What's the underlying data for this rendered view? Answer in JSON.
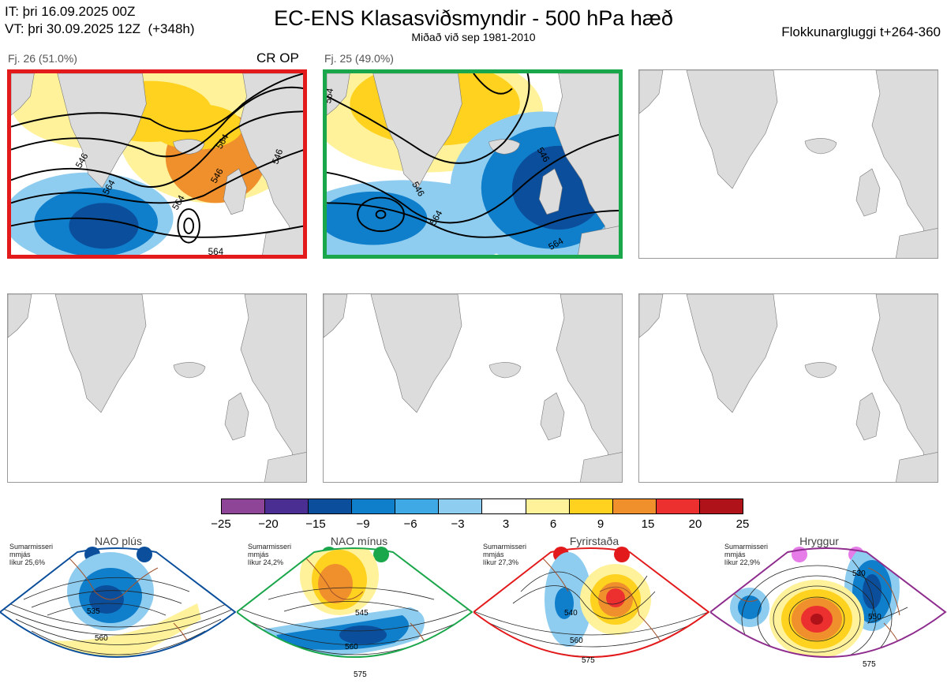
{
  "header": {
    "init_time": "IT: þri 16.09.2025 00Z",
    "valid_time": "VT: þri 30.09.2025 12Z  (+348h)",
    "title": "EC-ENS Klasasviðsmyndir - 500 hPa hæð",
    "subtitle": "Miðað við sep 1981-2010",
    "window": "Flokkunargluggi t+264-360"
  },
  "panels": [
    {
      "label": "Fj. 26 (51.0%)",
      "tag": "CR OP",
      "border_color": "#e31a1c",
      "contour_labels": [
        "546",
        "546",
        "564",
        "564",
        "564",
        "564",
        "546"
      ]
    },
    {
      "label": "Fj. 25 (49.0%)",
      "tag": "",
      "border_color": "#1aa64a",
      "contour_labels": [
        "546",
        "564",
        "546",
        "564",
        "564"
      ]
    },
    {
      "label": "",
      "tag": "",
      "border_color": ""
    },
    {
      "label": "",
      "tag": "",
      "border_color": ""
    },
    {
      "label": "",
      "tag": "",
      "border_color": ""
    },
    {
      "label": "",
      "tag": "",
      "border_color": ""
    }
  ],
  "colorbar": {
    "colors": [
      "#8e4598",
      "#4b2e91",
      "#0b4f9c",
      "#0f7fcc",
      "#3fa9e6",
      "#8fcdf0",
      "#ffffff",
      "#fff29a",
      "#ffd21f",
      "#f0902c",
      "#ec3030",
      "#b0121a"
    ],
    "ticks": [
      "−25",
      "−20",
      "−15",
      "−9",
      "−6",
      "−3",
      "3",
      "6",
      "9",
      "15",
      "20",
      "25"
    ]
  },
  "regimes": [
    {
      "name": "NAO plús",
      "season": "Sumarmisseri",
      "period": "mmjás",
      "prob": "líkur 25,6%",
      "color": "#0b4f9c",
      "contour_labels": [
        "535",
        "560"
      ]
    },
    {
      "name": "NAO mínus",
      "season": "Sumarmisseri",
      "period": "mmjás",
      "prob": "líkur 24,2%",
      "color": "#1aa64a",
      "contour_labels": [
        "545",
        "560",
        "575"
      ]
    },
    {
      "name": "Fyrirstaða",
      "season": "Sumarmisseri",
      "period": "mmjás",
      "prob": "líkur 27,3%",
      "color": "#e31a1c",
      "contour_labels": [
        "540",
        "560",
        "575"
      ]
    },
    {
      "name": "Hryggur",
      "season": "Sumarmisseri",
      "period": "mmjás",
      "prob": "líkur 22,9%",
      "color": "#8e2c8e",
      "dot_color": "#e57ce8",
      "contour_labels": [
        "530",
        "550",
        "575"
      ]
    }
  ],
  "icons": [
    "greenland-landmass-icon",
    "iceland-icon",
    "scandinavia-icon",
    "british-isles-icon"
  ]
}
